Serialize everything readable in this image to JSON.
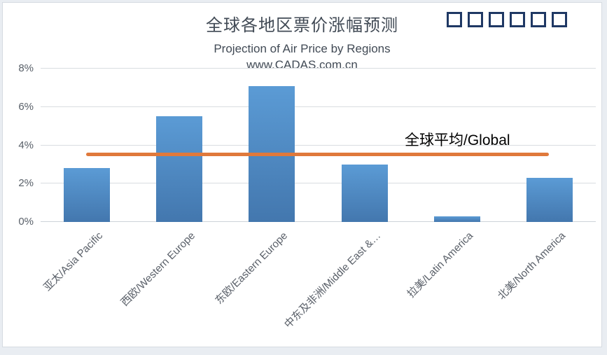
{
  "window": {
    "tofu_box_count": 6
  },
  "chart_data": {
    "type": "bar",
    "title": "全球各地区票价涨幅预测",
    "subtitle": "Projection of Air Price by Regions",
    "watermark": "www.CADAS.com.cn",
    "categories": [
      "亚太/Asia Pacific",
      "西欧/Western Europe",
      "东欧/Eastern Europe",
      "中东及非洲/Middle East &…",
      "拉美/Latin America",
      "北美/North America"
    ],
    "values": [
      2.8,
      5.5,
      7.1,
      3.0,
      0.3,
      2.3
    ],
    "unit": "%",
    "xlabel": "",
    "ylabel": "",
    "ylim": [
      0,
      8
    ],
    "ytick_step": 2,
    "ytick_suffix": "%",
    "grid": true,
    "legend": "none",
    "reference_line": {
      "label": "全球平均/Global",
      "value": 3.5
    },
    "colors": {
      "bar_top": "#5b9bd5",
      "bar_bottom": "#4377ae",
      "reference_line": "#e0793b",
      "title_text": "#414a55",
      "axis_text": "#595f68",
      "tofu_border": "#1f3864",
      "gridline": "#d9dde1"
    }
  }
}
